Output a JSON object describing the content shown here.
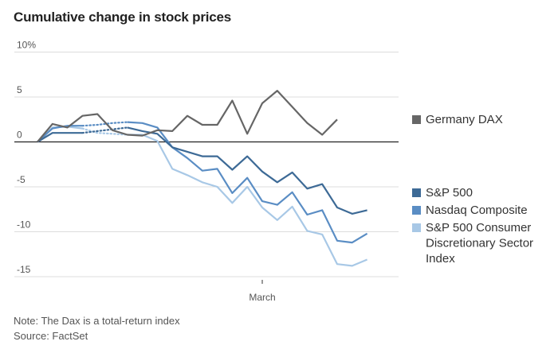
{
  "chart_data": {
    "type": "line",
    "title": "Cumulative change in stock prices",
    "xlabel": "March",
    "ylabel": "",
    "ylim": [
      -15,
      10
    ],
    "y_ticks": [
      {
        "value": 10,
        "label": "10%"
      },
      {
        "value": 5,
        "label": "5"
      },
      {
        "value": 0,
        "label": "0"
      },
      {
        "value": -5,
        "label": "-5"
      },
      {
        "value": -10,
        "label": "-10"
      },
      {
        "value": -15,
        "label": "-15"
      }
    ],
    "x_count": 25,
    "x_tick": {
      "index": 15,
      "label": "March"
    },
    "gap_range": [
      3,
      6
    ],
    "series": [
      {
        "name": "Germany DAX",
        "legend": [
          "Germany DAX"
        ],
        "color": "#666666",
        "values": [
          0,
          2.0,
          1.6,
          2.9,
          3.1,
          1.3,
          0.8,
          0.7,
          1.3,
          1.2,
          2.9,
          1.9,
          1.9,
          4.6,
          0.9,
          4.3,
          5.7,
          3.9,
          2.1,
          0.8,
          2.5
        ]
      },
      {
        "name": "S&P 500",
        "legend": [
          "S&P 500"
        ],
        "color": "#3d6a96",
        "values": [
          0,
          1.0,
          1.0,
          1.0,
          1.2,
          1.4,
          1.6,
          1.2,
          0.9,
          -0.6,
          -1.1,
          -1.6,
          -1.6,
          -3.1,
          -1.6,
          -3.3,
          -4.5,
          -3.4,
          -5.2,
          -4.7,
          -7.3,
          -8.0,
          -7.6
        ]
      },
      {
        "name": "Nasdaq Composite",
        "legend": [
          "Nasdaq Composite"
        ],
        "color": "#5a8dc4",
        "values": [
          0,
          1.5,
          1.8,
          1.8,
          1.9,
          2.1,
          2.2,
          2.1,
          1.6,
          -0.6,
          -1.8,
          -3.2,
          -3.0,
          -5.7,
          -4.0,
          -6.6,
          -7.0,
          -5.6,
          -8.1,
          -7.6,
          -11.0,
          -11.2,
          -10.2
        ]
      },
      {
        "name": "S&P 500 Consumer Discretionary Sector Index",
        "legend": [
          "S&P 500 Consumer",
          "Discretionary Sector",
          "Index"
        ],
        "color": "#a8c8e6",
        "values": [
          0,
          1.6,
          1.7,
          1.5,
          1.0,
          0.9,
          0.8,
          0.8,
          0.1,
          -3.0,
          -3.7,
          -4.5,
          -5.0,
          -6.8,
          -5.0,
          -7.3,
          -8.7,
          -7.2,
          -9.9,
          -10.3,
          -13.6,
          -13.8,
          -13.1
        ]
      }
    ]
  },
  "footer": {
    "note": "Note: The Dax is a total-return index",
    "source": "Source: FactSet"
  }
}
